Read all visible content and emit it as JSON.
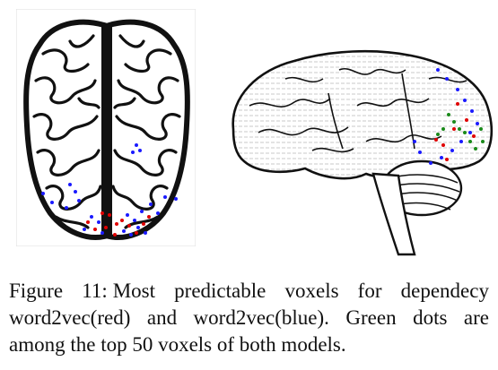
{
  "figure": {
    "label": "Figure 11:",
    "caption_text": "Most predictable voxels for dependecy word2vec(red) and word2vec(blue). Green dots are among the top 50 voxels of both models.",
    "colors": {
      "dependency_word2vec": "#e00000",
      "word2vec": "#1a1aff",
      "shared_top50": "#1a8a1a",
      "outline": "#111111"
    },
    "panels": [
      {
        "name": "top-view",
        "icon": "brain-top-view"
      },
      {
        "name": "side-view",
        "icon": "brain-side-view"
      }
    ]
  }
}
